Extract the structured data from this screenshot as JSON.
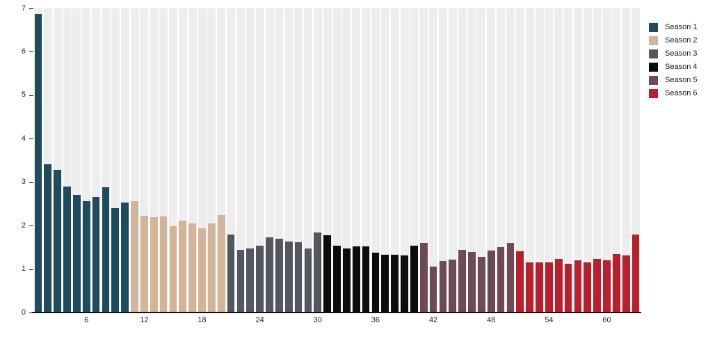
{
  "chart_data": {
    "type": "bar",
    "title": "",
    "xlabel": "",
    "ylabel": "",
    "ylim": [
      0,
      7
    ],
    "y_ticks": [
      0,
      1,
      2,
      3,
      4,
      5,
      6,
      7
    ],
    "x_ticks": [
      6,
      12,
      18,
      24,
      30,
      36,
      42,
      48,
      54,
      60
    ],
    "n_bars": 63,
    "grid": "off",
    "background_stripes": true,
    "legend_position": "top-right",
    "series": [
      {
        "name": "Season 1",
        "color": "#1e4b5e",
        "start_episode": 1,
        "values": [
          6.88,
          3.42,
          3.28,
          2.9,
          2.71,
          2.57,
          2.66,
          2.89,
          2.4,
          2.53
        ]
      },
      {
        "name": "Season 2",
        "color": "#d3b496",
        "start_episode": 11,
        "values": [
          2.57,
          2.23,
          2.2,
          2.21,
          1.98,
          2.11,
          2.05,
          1.94,
          2.05,
          2.25
        ]
      },
      {
        "name": "Season 3",
        "color": "#54575f",
        "start_episode": 21,
        "values": [
          1.8,
          1.45,
          1.48,
          1.54,
          1.73,
          1.7,
          1.64,
          1.62,
          1.47,
          1.85
        ]
      },
      {
        "name": "Season 4",
        "color": "#0c0c0e",
        "start_episode": 31,
        "values": [
          1.78,
          1.54,
          1.48,
          1.52,
          1.53,
          1.38,
          1.33,
          1.33,
          1.32,
          1.54
        ]
      },
      {
        "name": "Season 5",
        "color": "#6e4a56",
        "start_episode": 41,
        "values": [
          1.6,
          1.06,
          1.19,
          1.22,
          1.45,
          1.4,
          1.29,
          1.43,
          1.51,
          1.6
        ]
      },
      {
        "name": "Season 6",
        "color": "#b91f2c",
        "start_episode": 51,
        "values": [
          1.41,
          1.16,
          1.15,
          1.16,
          1.23,
          1.13,
          1.2,
          1.16,
          1.23,
          1.21,
          1.34,
          1.31,
          1.8
        ]
      }
    ]
  },
  "colors": {
    "background": "#ffffff",
    "stripe": "#ededed",
    "axis": "#111111",
    "tick_text": "#262626"
  }
}
